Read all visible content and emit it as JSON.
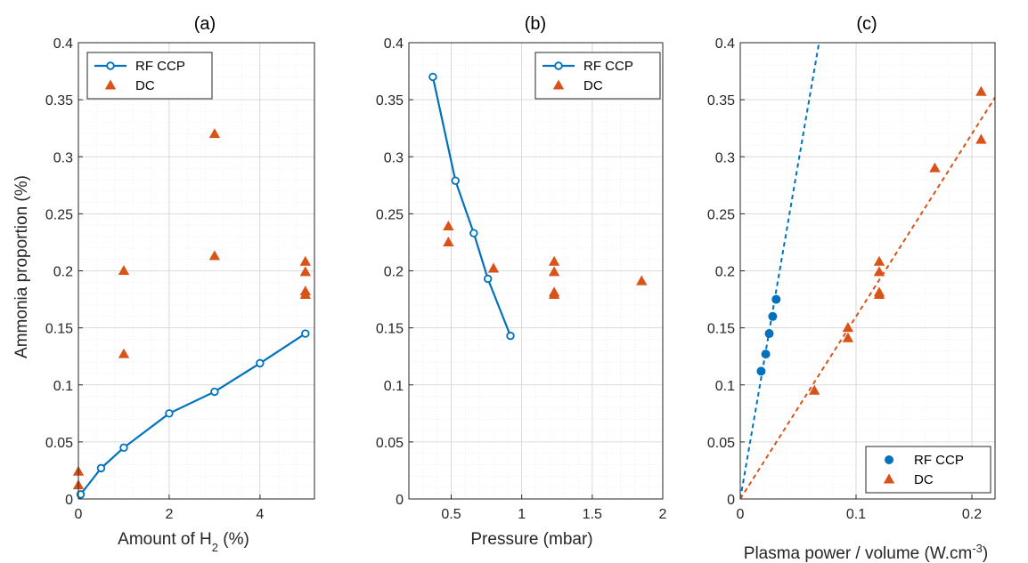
{
  "colors": {
    "rf": "#0072BD",
    "dc": "#D95319"
  },
  "chart_data": [
    {
      "type": "scatter",
      "title": "(a)",
      "xlabel_pre": "Amount of H",
      "xlabel_sub": "2",
      "xlabel_post": " (%)",
      "ylabel": "Ammonia proportion (%)",
      "xlim": [
        0,
        5.2
      ],
      "ylim": [
        0,
        0.4
      ],
      "xticks": [
        0,
        2,
        4
      ],
      "xtick_labels": [
        "0",
        "2",
        "4"
      ],
      "yticks": [
        0,
        0.05,
        0.1,
        0.15,
        0.2,
        0.25,
        0.3,
        0.35,
        0.4
      ],
      "ytick_labels": [
        "0",
        "0.05",
        "0.1",
        "0.15",
        "0.2",
        "0.25",
        "0.3",
        "0.35",
        "0.4"
      ],
      "grid": true,
      "minor_grid": true,
      "legend": {
        "placement": "top-left",
        "entries": [
          {
            "label": "RF CCP",
            "style": "line-circle"
          },
          {
            "label": "DC",
            "style": "triangle"
          }
        ]
      },
      "series": [
        {
          "name": "RF CCP",
          "style": "line-circle",
          "x": [
            0.05,
            0.5,
            1,
            2,
            3,
            4,
            5
          ],
          "y": [
            0.004,
            0.027,
            0.045,
            0.075,
            0.094,
            0.119,
            0.145
          ]
        },
        {
          "name": "DC",
          "style": "triangle",
          "x": [
            0,
            0,
            1,
            1,
            3,
            3,
            5,
            5,
            5,
            5
          ],
          "y": [
            0.024,
            0.012,
            0.2,
            0.127,
            0.32,
            0.213,
            0.208,
            0.199,
            0.182,
            0.179
          ]
        }
      ]
    },
    {
      "type": "scatter",
      "title": "(b)",
      "xlabel": "Pressure (mbar)",
      "ylabel": "",
      "xlim": [
        0.2,
        2
      ],
      "ylim": [
        0,
        0.4
      ],
      "xticks": [
        0.5,
        1,
        1.5,
        2
      ],
      "xtick_labels": [
        "0.5",
        "1",
        "1.5",
        "2"
      ],
      "yticks": [
        0,
        0.05,
        0.1,
        0.15,
        0.2,
        0.25,
        0.3,
        0.35,
        0.4
      ],
      "ytick_labels": [
        "0",
        "0.05",
        "0.1",
        "0.15",
        "0.2",
        "0.25",
        "0.3",
        "0.35",
        "0.4"
      ],
      "grid": true,
      "minor_grid": true,
      "legend": {
        "placement": "top-right",
        "entries": [
          {
            "label": "RF CCP",
            "style": "line-circle"
          },
          {
            "label": "DC",
            "style": "triangle"
          }
        ]
      },
      "series": [
        {
          "name": "RF CCP",
          "style": "line-circle",
          "x": [
            0.37,
            0.53,
            0.66,
            0.76,
            0.92
          ],
          "y": [
            0.37,
            0.279,
            0.233,
            0.193,
            0.143
          ]
        },
        {
          "name": "DC",
          "style": "triangle",
          "x": [
            0.48,
            0.48,
            0.8,
            1.23,
            1.23,
            1.23,
            1.23,
            1.85
          ],
          "y": [
            0.239,
            0.225,
            0.202,
            0.208,
            0.199,
            0.181,
            0.179,
            0.191
          ]
        }
      ]
    },
    {
      "type": "scatter",
      "title": "(c)",
      "xlabel": "Plasma power / volume  (W.cm",
      "xlabel_sup": "-3",
      "xlabel_post": ")",
      "ylabel": "",
      "xlim": [
        0,
        0.22
      ],
      "ylim": [
        0,
        0.4
      ],
      "xticks": [
        0,
        0.1,
        0.2
      ],
      "xtick_labels": [
        "0",
        "0.1",
        "0.2"
      ],
      "yticks": [
        0,
        0.05,
        0.1,
        0.15,
        0.2,
        0.25,
        0.3,
        0.35,
        0.4
      ],
      "ytick_labels": [
        "0",
        "0.05",
        "0.1",
        "0.15",
        "0.2",
        "0.25",
        "0.3",
        "0.35",
        "0.4"
      ],
      "grid": true,
      "minor_grid": true,
      "legend": {
        "placement": "bottom-right",
        "entries": [
          {
            "label": "RF CCP",
            "style": "dot"
          },
          {
            "label": "DC",
            "style": "triangle"
          }
        ]
      },
      "series": [
        {
          "name": "RF CCP",
          "style": "dot",
          "x": [
            0.018,
            0.022,
            0.025,
            0.028,
            0.031
          ],
          "y": [
            0.112,
            0.127,
            0.145,
            0.16,
            0.175
          ]
        },
        {
          "name": "DC",
          "style": "triangle",
          "x": [
            0.064,
            0.093,
            0.093,
            0.12,
            0.12,
            0.12,
            0.12,
            0.168,
            0.208,
            0.208
          ],
          "y": [
            0.095,
            0.15,
            0.141,
            0.208,
            0.199,
            0.181,
            0.179,
            0.29,
            0.357,
            0.315
          ]
        }
      ],
      "fits": [
        {
          "series": "RF CCP",
          "x": [
            0,
            0.068
          ],
          "y": [
            0,
            0.4
          ]
        },
        {
          "series": "DC",
          "x": [
            0,
            0.22
          ],
          "y": [
            0,
            0.352
          ]
        }
      ]
    }
  ]
}
